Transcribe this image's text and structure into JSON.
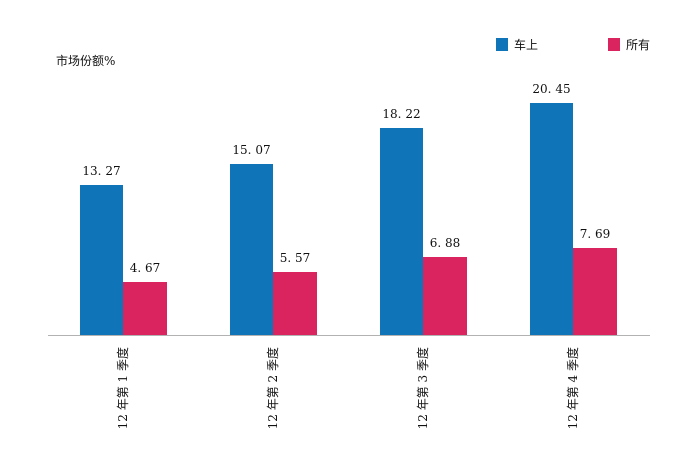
{
  "chart_data": {
    "type": "bar",
    "title": "",
    "xlabel": "",
    "ylabel": "市场份额%",
    "categories": [
      "12 年第 1 季度",
      "12 年第 2 季度",
      "12 年第 3 季度",
      "12 年第 4 季度"
    ],
    "series": [
      {
        "name": "车上",
        "color": "#0f74b8",
        "values": [
          13.27,
          15.07,
          18.22,
          20.45
        ],
        "value_labels": [
          "13. 27",
          "15. 07",
          "18. 22",
          "20. 45"
        ]
      },
      {
        "name": "所有",
        "color": "#d9245f",
        "values": [
          4.67,
          5.57,
          6.88,
          7.69
        ],
        "value_labels": [
          "4. 67",
          "5. 57",
          "6. 88",
          "7. 69"
        ]
      }
    ],
    "ylim": [
      0,
      24.5
    ],
    "grid": false,
    "y_axis_ticks_visible": false,
    "legend_position": "top-right",
    "x_tick_rotation_deg": -90,
    "axis_line_color": "#b3b3b3",
    "text_color": "#111111",
    "background_color": "#ffffff"
  }
}
